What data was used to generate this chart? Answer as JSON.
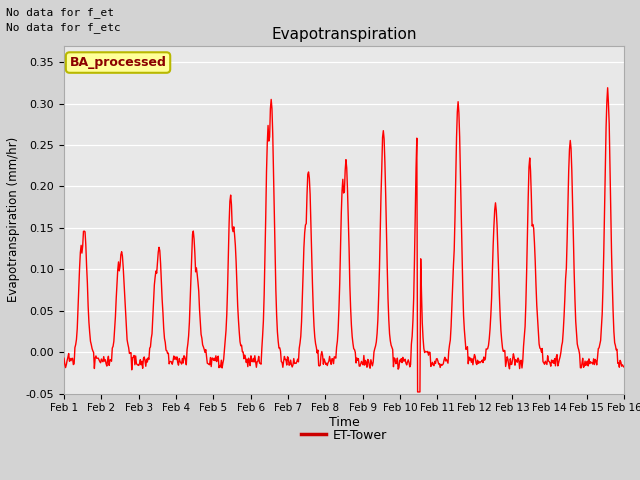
{
  "title": "Evapotranspiration",
  "xlabel": "Time",
  "ylabel": "Evapotranspiration (mm/hr)",
  "ylim": [
    -0.05,
    0.37
  ],
  "yticks": [
    -0.05,
    0.0,
    0.05,
    0.1,
    0.15,
    0.2,
    0.25,
    0.3,
    0.35
  ],
  "line_color": "#ff0000",
  "line_width": 1.0,
  "fig_bg_color": "#d3d3d3",
  "plot_bg_color": "#e8e8e8",
  "legend_label": "ET-Tower",
  "legend_marker_color": "#cc0000",
  "top_left_text1": "No data for f_et",
  "top_left_text2": "No data for f_etc",
  "ba_processed_text": "BA_processed",
  "xticklabels": [
    "Feb 1",
    "Feb 2",
    "Feb 3",
    "Feb 4",
    "Feb 5",
    "Feb 6",
    "Feb 7",
    "Feb 8",
    "Feb 9",
    "Feb 10",
    "Feb 11",
    "Feb 12",
    "Feb 13",
    "Feb 14",
    "Feb 15",
    "Feb 16"
  ],
  "n_days": 15,
  "points_per_day": 48,
  "day_peaks": [
    0.15,
    0.12,
    0.125,
    0.1,
    0.15,
    0.305,
    0.22,
    0.23,
    0.267,
    0.0,
    0.303,
    0.178,
    0.155,
    0.255,
    0.316
  ],
  "day_peaks2": [
    0.128,
    0.105,
    0.098,
    0.148,
    0.19,
    0.27,
    0.155,
    0.205,
    0.0,
    0.275,
    0.13,
    0.025,
    0.235,
    0.11,
    0.02
  ]
}
